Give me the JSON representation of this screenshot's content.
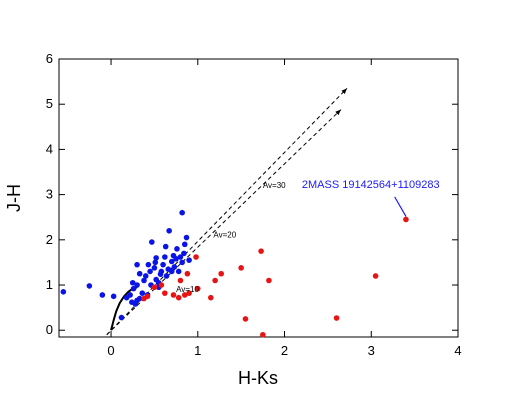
{
  "chart_data": {
    "type": "scatter",
    "xlabel": "H-Ks",
    "ylabel": "J-H",
    "xlim": [
      -0.6,
      4.0
    ],
    "ylim": [
      -0.15,
      6.0
    ],
    "x_ticks": [
      0,
      1,
      2,
      3,
      4
    ],
    "y_ticks": [
      0,
      1,
      2,
      3,
      4,
      5,
      6
    ],
    "grid": false,
    "colors": {
      "blue": "#0a14e6",
      "red": "#e81414",
      "annotation_text": "#1a1aff"
    },
    "series": [
      {
        "color": "blue",
        "points": [
          [
            -0.55,
            0.85
          ],
          [
            -0.25,
            0.98
          ],
          [
            -0.1,
            0.78
          ],
          [
            0.03,
            0.75
          ],
          [
            0.12,
            0.28
          ],
          [
            0.18,
            0.72
          ],
          [
            0.22,
            0.78
          ],
          [
            0.26,
            0.92
          ],
          [
            0.24,
            0.62
          ],
          [
            0.28,
            0.58
          ],
          [
            0.3,
            0.66
          ],
          [
            0.33,
            0.7
          ],
          [
            0.3,
            1.0
          ],
          [
            0.33,
            1.25
          ],
          [
            0.3,
            1.45
          ],
          [
            0.36,
            0.82
          ],
          [
            0.38,
            1.1
          ],
          [
            0.4,
            1.2
          ],
          [
            0.42,
            0.78
          ],
          [
            0.45,
            1.3
          ],
          [
            0.46,
            1.0
          ],
          [
            0.5,
            1.38
          ],
          [
            0.51,
            1.5
          ],
          [
            0.52,
            1.12
          ],
          [
            0.55,
            1.05
          ],
          [
            0.57,
            1.24
          ],
          [
            0.58,
            1.3
          ],
          [
            0.6,
            1.45
          ],
          [
            0.62,
            1.62
          ],
          [
            0.64,
            1.2
          ],
          [
            0.66,
            1.35
          ],
          [
            0.7,
            1.52
          ],
          [
            0.72,
            1.65
          ],
          [
            0.73,
            1.4
          ],
          [
            0.75,
            1.58
          ],
          [
            0.76,
            1.8
          ],
          [
            0.78,
            1.3
          ],
          [
            0.8,
            1.62
          ],
          [
            0.82,
            1.5
          ],
          [
            0.84,
            1.7
          ],
          [
            0.85,
            1.9
          ],
          [
            0.87,
            2.05
          ],
          [
            0.82,
            2.6
          ],
          [
            0.67,
            2.2
          ],
          [
            0.47,
            1.95
          ],
          [
            0.63,
            1.85
          ],
          [
            0.52,
            1.6
          ],
          [
            0.43,
            1.45
          ],
          [
            0.7,
            1.3
          ],
          [
            0.9,
            1.55
          ],
          [
            0.55,
            0.95
          ],
          [
            0.25,
            1.05
          ]
        ]
      },
      {
        "color": "red",
        "points": [
          [
            0.38,
            0.7
          ],
          [
            0.42,
            0.75
          ],
          [
            0.5,
            0.95
          ],
          [
            0.58,
            1.0
          ],
          [
            0.62,
            0.82
          ],
          [
            0.72,
            0.78
          ],
          [
            0.78,
            0.72
          ],
          [
            0.8,
            1.1
          ],
          [
            0.85,
            0.78
          ],
          [
            0.88,
            1.25
          ],
          [
            0.9,
            0.82
          ],
          [
            0.98,
            1.62
          ],
          [
            1.0,
            0.92
          ],
          [
            1.15,
            0.72
          ],
          [
            1.2,
            1.1
          ],
          [
            1.27,
            1.25
          ],
          [
            1.5,
            1.38
          ],
          [
            1.55,
            0.25
          ],
          [
            1.73,
            1.75
          ],
          [
            1.82,
            1.1
          ],
          [
            1.75,
            -0.1
          ],
          [
            2.6,
            0.27
          ],
          [
            3.05,
            1.2
          ],
          [
            3.4,
            2.45
          ]
        ]
      }
    ],
    "reddening_vectors": [
      {
        "from": [
          -0.05,
          -0.1
        ],
        "to": [
          2.72,
          5.35
        ]
      },
      {
        "from": [
          -0.05,
          -0.1
        ],
        "to": [
          2.65,
          4.88
        ]
      }
    ],
    "annotations": [
      {
        "text": "Av=10",
        "x": 0.75,
        "y": 0.85
      },
      {
        "text": "Av=20",
        "x": 1.18,
        "y": 2.05
      },
      {
        "text": "Av=30",
        "x": 1.75,
        "y": 3.15
      },
      {
        "text": "2MASS 19142564+1109283",
        "x": 2.2,
        "y": 3.15,
        "arrow_to": [
          3.4,
          2.45
        ],
        "color": "blue"
      }
    ],
    "main_sequence_curve": [
      [
        0.0,
        0.0
      ],
      [
        0.03,
        0.22
      ],
      [
        0.06,
        0.42
      ],
      [
        0.1,
        0.6
      ],
      [
        0.15,
        0.75
      ],
      [
        0.2,
        0.85
      ],
      [
        0.25,
        0.92
      ],
      [
        0.3,
        0.95
      ]
    ]
  }
}
